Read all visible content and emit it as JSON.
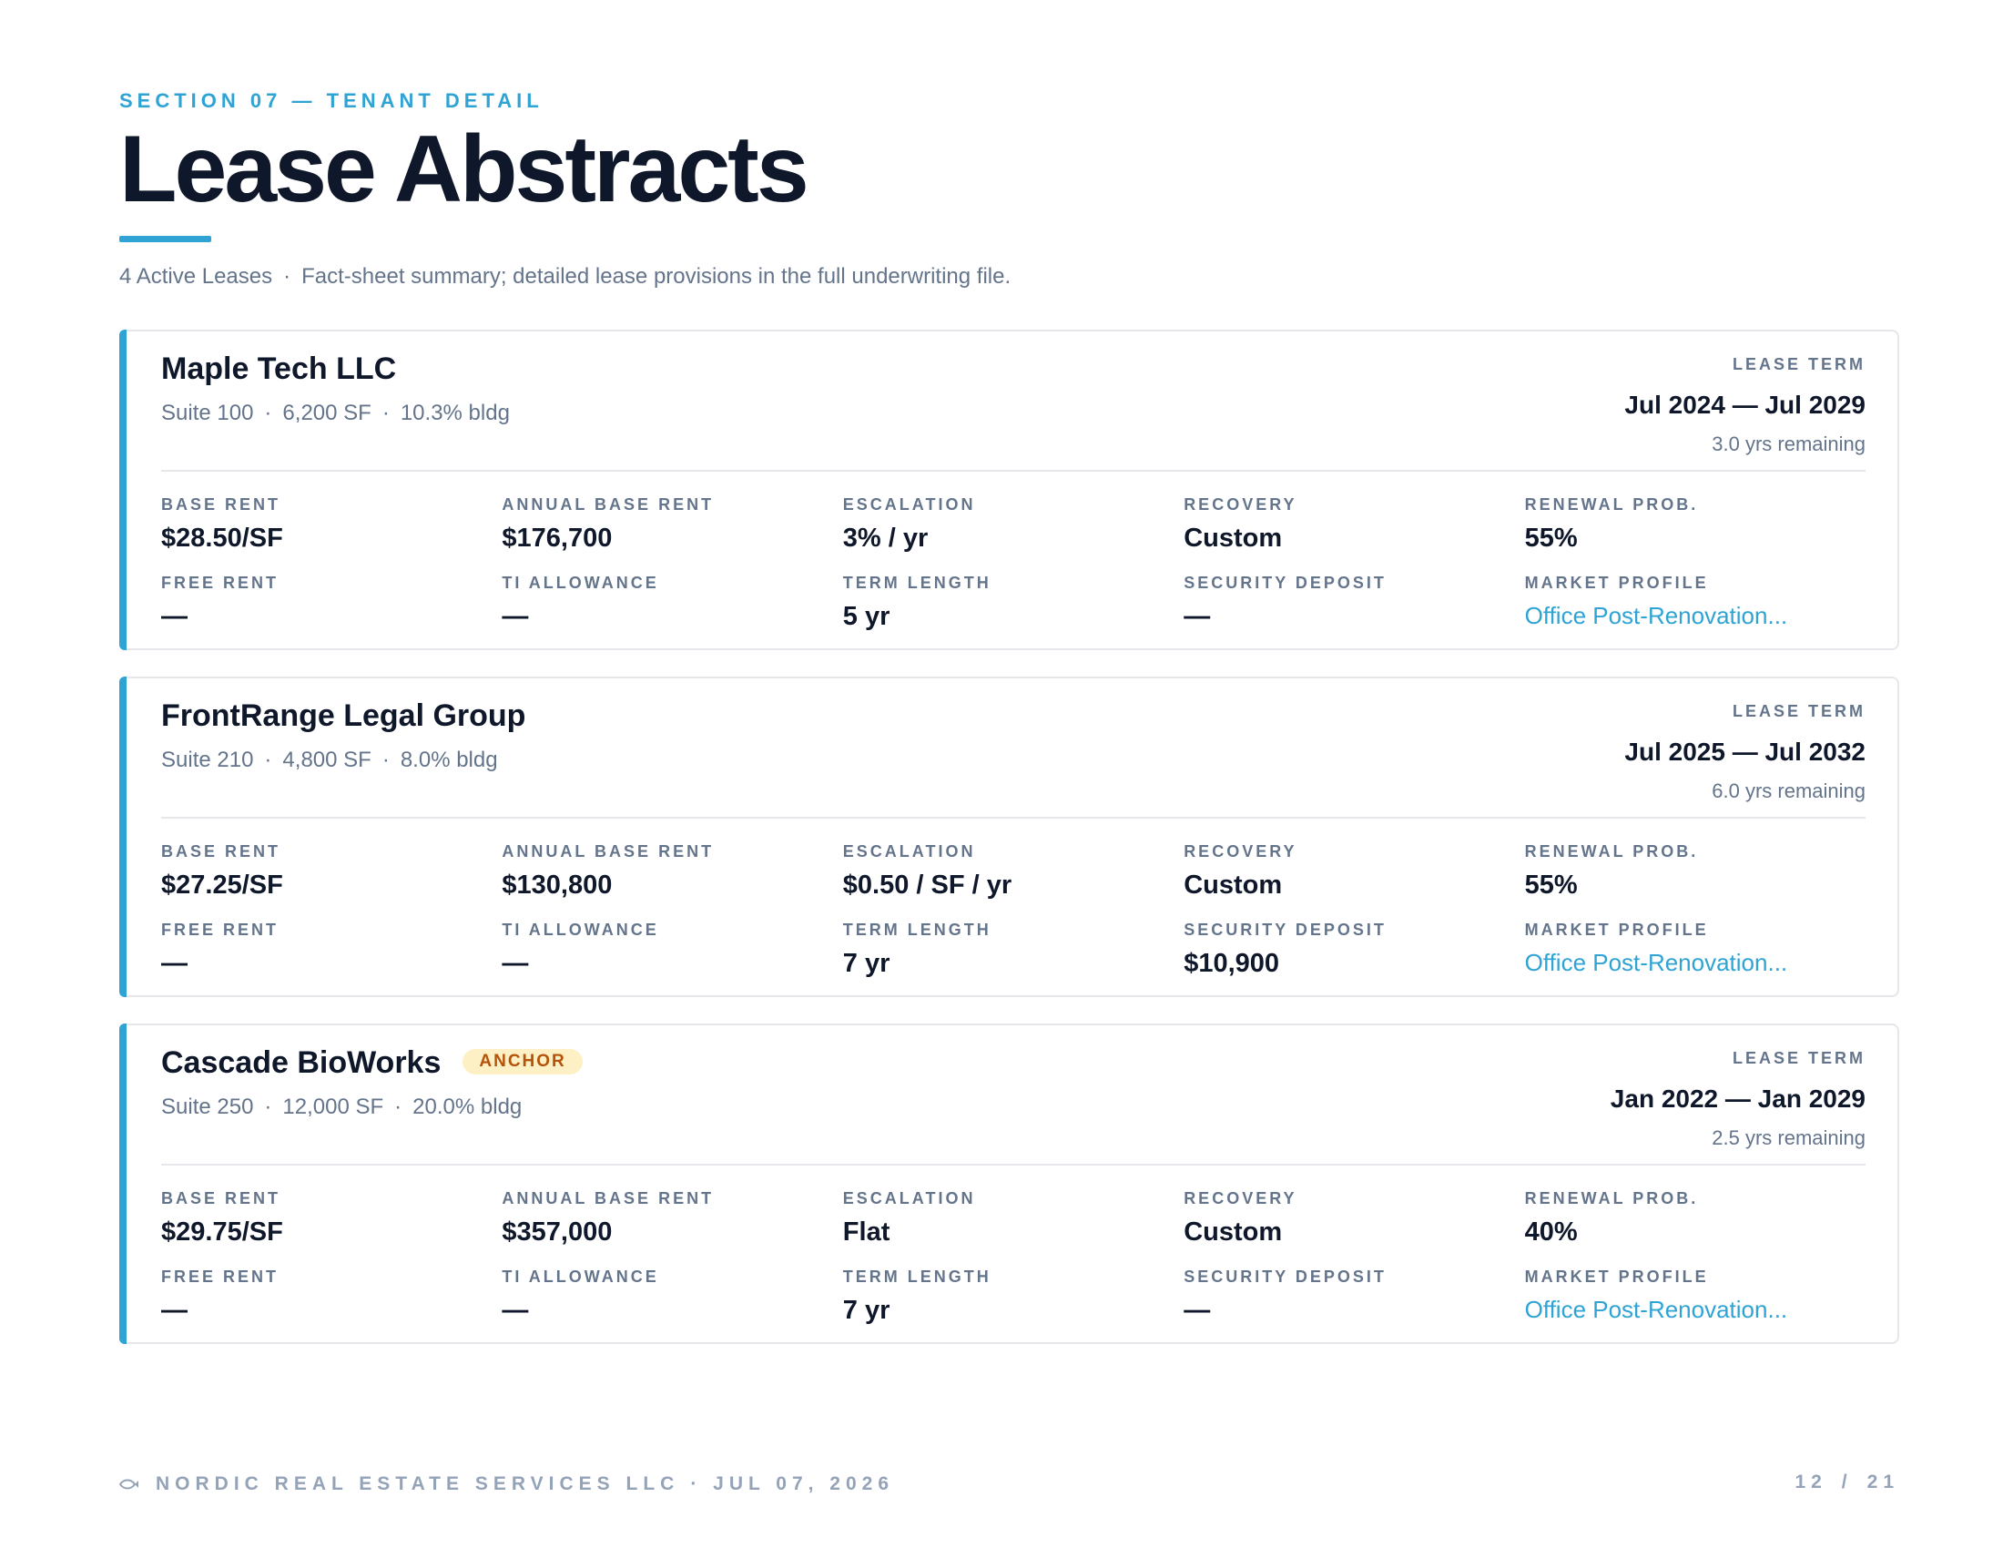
{
  "header": {
    "eyebrow": "SECTION 07 — TENANT DETAIL",
    "title": "Lease Abstracts",
    "lease_count": "4 Active Leases",
    "separator": "·",
    "description": "Fact-sheet summary; detailed lease provisions in the full underwriting file."
  },
  "accent_color": "#2ea3d4",
  "field_labels": {
    "base_rent": "BASE RENT",
    "annual_base_rent": "ANNUAL BASE RENT",
    "escalation": "ESCALATION",
    "recovery": "RECOVERY",
    "renewal_prob": "RENEWAL PROB.",
    "free_rent": "FREE RENT",
    "ti_allowance": "TI ALLOWANCE",
    "term_length": "TERM LENGTH",
    "security_deposit": "SECURITY DEPOSIT",
    "market_profile": "MARKET PROFILE",
    "lease_term": "LEASE TERM"
  },
  "leases": [
    {
      "name": "Maple Tech LLC",
      "badge": "",
      "suite": "Suite 100",
      "sf": "6,200 SF",
      "share": "10.3% bldg",
      "term_range": "Jul 2024 — Jul 2029",
      "term_remaining": "3.0 yrs remaining",
      "base_rent": "$28.50/SF",
      "annual_base_rent": "$176,700",
      "escalation": "3% / yr",
      "recovery": "Custom",
      "renewal_prob": "55%",
      "free_rent": "—",
      "ti_allowance": "—",
      "term_length": "5 yr",
      "security_deposit": "—",
      "market_profile": "Office Post-Renovation..."
    },
    {
      "name": "FrontRange Legal Group",
      "badge": "",
      "suite": "Suite 210",
      "sf": "4,800 SF",
      "share": "8.0% bldg",
      "term_range": "Jul 2025 — Jul 2032",
      "term_remaining": "6.0 yrs remaining",
      "base_rent": "$27.25/SF",
      "annual_base_rent": "$130,800",
      "escalation": "$0.50 / SF / yr",
      "recovery": "Custom",
      "renewal_prob": "55%",
      "free_rent": "—",
      "ti_allowance": "—",
      "term_length": "7 yr",
      "security_deposit": "$10,900",
      "market_profile": "Office Post-Renovation..."
    },
    {
      "name": "Cascade BioWorks",
      "badge": "ANCHOR",
      "suite": "Suite 250",
      "sf": "12,000 SF",
      "share": "20.0% bldg",
      "term_range": "Jan 2022 — Jan 2029",
      "term_remaining": "2.5 yrs remaining",
      "base_rent": "$29.75/SF",
      "annual_base_rent": "$357,000",
      "escalation": "Flat",
      "recovery": "Custom",
      "renewal_prob": "40%",
      "free_rent": "—",
      "ti_allowance": "—",
      "term_length": "7 yr",
      "security_deposit": "—",
      "market_profile": "Office Post-Renovation..."
    }
  ],
  "footer": {
    "logo_icon": "fish-logo-icon",
    "company": "NORDIC REAL ESTATE SERVICES LLC",
    "date": "· JUL 07, 2026",
    "page_current": "12",
    "page_sep": "/",
    "page_total": "21"
  }
}
